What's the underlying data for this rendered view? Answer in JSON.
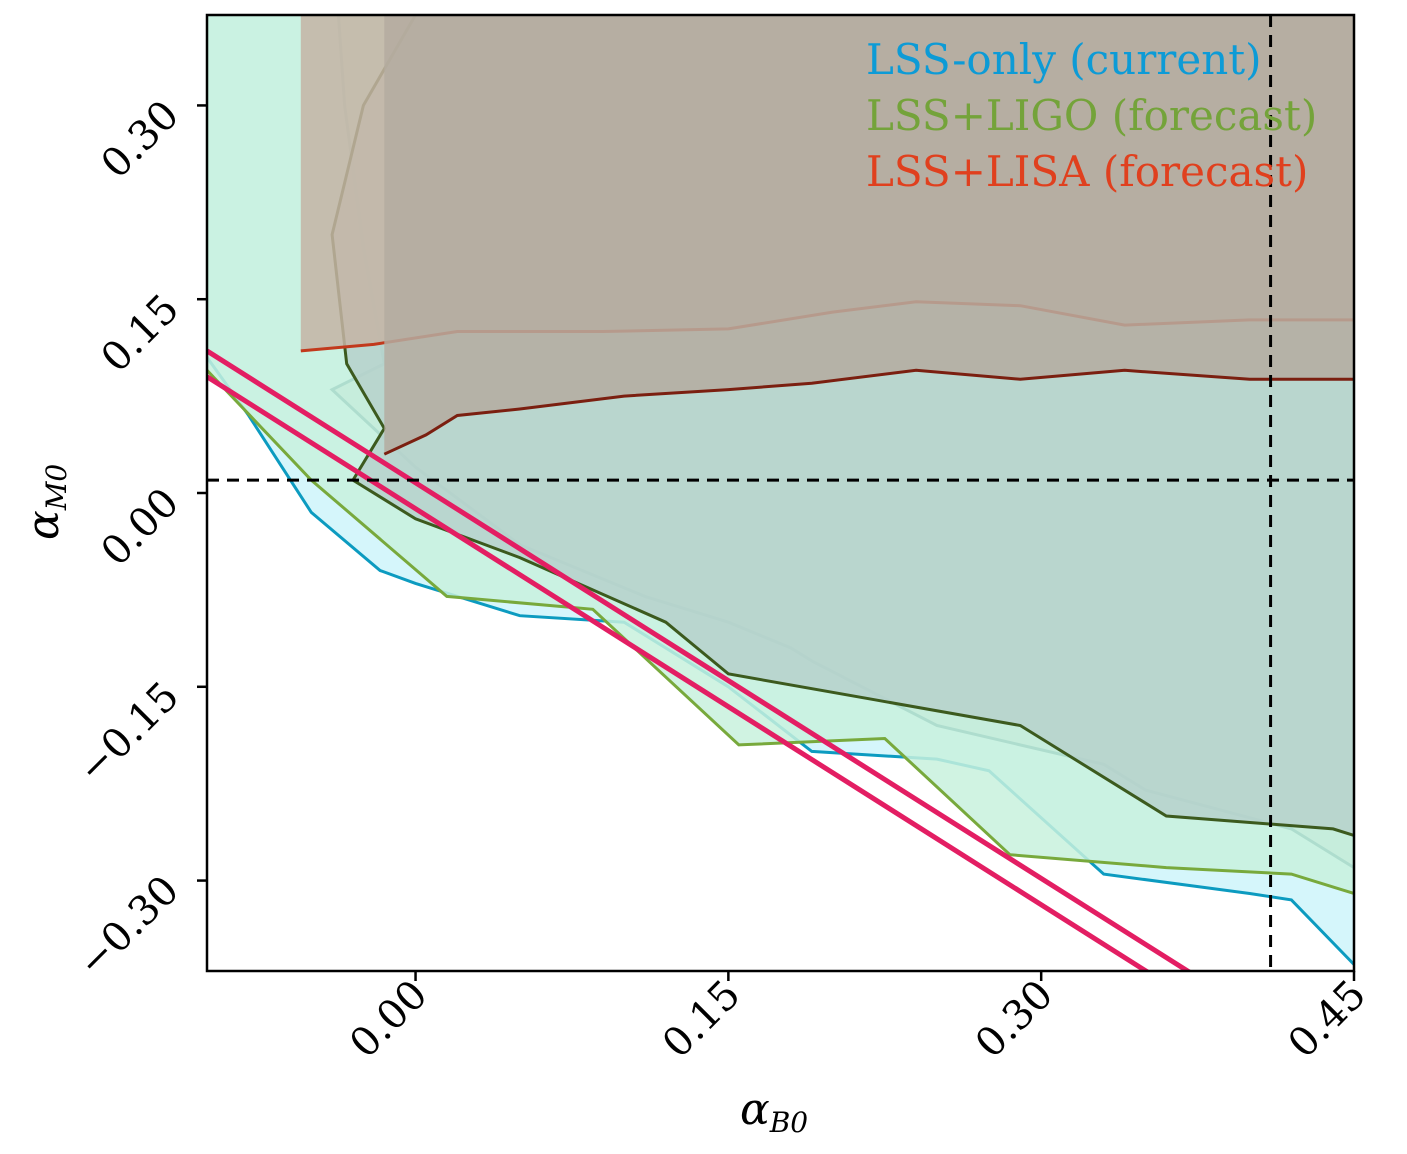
{
  "chart_data": {
    "type": "area",
    "xlabel": "α",
    "xlabel_sub": "B0",
    "ylabel": "α",
    "ylabel_sub": "M0",
    "xlim": [
      -0.1,
      0.45
    ],
    "ylim": [
      -0.37,
      0.37
    ],
    "xticks": [
      0.0,
      0.15,
      0.3,
      0.45
    ],
    "yticks": [
      -0.3,
      -0.15,
      0.0,
      0.15,
      0.3
    ],
    "xtick_labels": [
      "0.00",
      "0.15",
      "0.30",
      "0.45"
    ],
    "ytick_labels": [
      "−0.30",
      "−0.15",
      "0.00",
      "0.15",
      "0.30"
    ],
    "grid": false,
    "legend_position": "top-right",
    "legend": [
      {
        "label": "LSS-only (current)",
        "color": "#0d9bd6"
      },
      {
        "label": "LSS+LIGO (forecast)",
        "color": "#74a33a"
      },
      {
        "label": "LSS+LISA (forecast)",
        "color": "#e0401e"
      }
    ],
    "reference_lines": [
      {
        "orientation": "horizontal",
        "value": 0.01,
        "style": "dashed",
        "color": "#000000"
      },
      {
        "orientation": "vertical",
        "value": 0.41,
        "style": "dashed",
        "color": "#000000"
      }
    ],
    "series": [
      {
        "name": "LSS-only (current)",
        "level": "outer",
        "fill": "#cef4fa",
        "stroke": "#0c9bc0",
        "x": [
          -0.1,
          -0.08,
          -0.05,
          -0.017,
          0.0,
          0.05,
          0.1,
          0.15,
          0.19,
          0.25,
          0.275,
          0.33,
          0.4,
          0.42,
          0.45
        ],
        "y": [
          0.105,
          0.06,
          -0.015,
          -0.06,
          -0.07,
          -0.095,
          -0.1,
          -0.15,
          -0.2,
          -0.206,
          -0.215,
          -0.295,
          -0.31,
          -0.315,
          -0.365
        ]
      },
      {
        "name": "LSS-only (current)",
        "level": "inner",
        "fill": "#b6d1cb",
        "stroke": "#1f6a78",
        "x": [
          -0.037,
          -0.034,
          -0.025,
          -0.015,
          -0.04,
          -0.02,
          0.0,
          0.05,
          0.11,
          0.15,
          0.18,
          0.19,
          0.25,
          0.33,
          0.35,
          0.42,
          0.45
        ],
        "y": [
          0.37,
          0.3,
          0.19,
          0.1,
          0.08,
          0.05,
          0.02,
          -0.04,
          -0.08,
          -0.1,
          -0.12,
          -0.13,
          -0.18,
          -0.21,
          -0.23,
          -0.26,
          -0.29
        ]
      },
      {
        "name": "LSS+LIGO (forecast)",
        "level": "outer",
        "fill": "#c8f1dd",
        "stroke": "#78a93c",
        "x": [
          -0.1,
          -0.05,
          0.015,
          0.085,
          0.155,
          0.225,
          0.285,
          0.36,
          0.42,
          0.45
        ],
        "y": [
          0.095,
          0.01,
          -0.08,
          -0.09,
          -0.195,
          -0.19,
          -0.28,
          -0.29,
          -0.295,
          -0.31
        ]
      },
      {
        "name": "LSS+LIGO (forecast)",
        "level": "inner",
        "fill": "#b6d1cb",
        "stroke": "#3c5a1e",
        "x": [
          0.0,
          -0.025,
          -0.04,
          -0.033,
          -0.015,
          -0.03,
          0.0,
          0.05,
          0.12,
          0.15,
          0.22,
          0.29,
          0.36,
          0.44,
          0.45
        ],
        "y": [
          0.37,
          0.3,
          0.2,
          0.1,
          0.05,
          0.01,
          -0.02,
          -0.05,
          -0.1,
          -0.14,
          -0.16,
          -0.18,
          -0.25,
          -0.26,
          -0.265
        ]
      },
      {
        "name": "LSS+LISA (forecast)",
        "level": "outer",
        "fill": "#c4b4a4",
        "stroke": "#c2391c",
        "x": [
          -0.055,
          -0.02,
          0.02,
          0.09,
          0.15,
          0.2,
          0.24,
          0.29,
          0.34,
          0.4,
          0.45
        ],
        "y": [
          0.11,
          0.115,
          0.125,
          0.125,
          0.127,
          0.14,
          0.148,
          0.145,
          0.13,
          0.134,
          0.134
        ]
      },
      {
        "name": "LSS+LISA (forecast)",
        "level": "inner",
        "fill": "#b4aba0",
        "stroke": "#7b1f10",
        "x": [
          -0.015,
          0.005,
          0.02,
          0.05,
          0.1,
          0.15,
          0.19,
          0.24,
          0.29,
          0.34,
          0.4,
          0.45
        ],
        "y": [
          0.03,
          0.045,
          0.06,
          0.065,
          0.075,
          0.08,
          0.085,
          0.095,
          0.088,
          0.095,
          0.088,
          0.088
        ]
      },
      {
        "name": "",
        "level": "bound",
        "stroke": "#e31e63",
        "x": [
          -0.1,
          0.38
        ],
        "y": [
          0.11,
          -0.38
        ]
      },
      {
        "name": "",
        "level": "bound",
        "stroke": "#e31e63",
        "x": [
          -0.1,
          0.36
        ],
        "y": [
          0.09,
          -0.38
        ]
      }
    ]
  }
}
